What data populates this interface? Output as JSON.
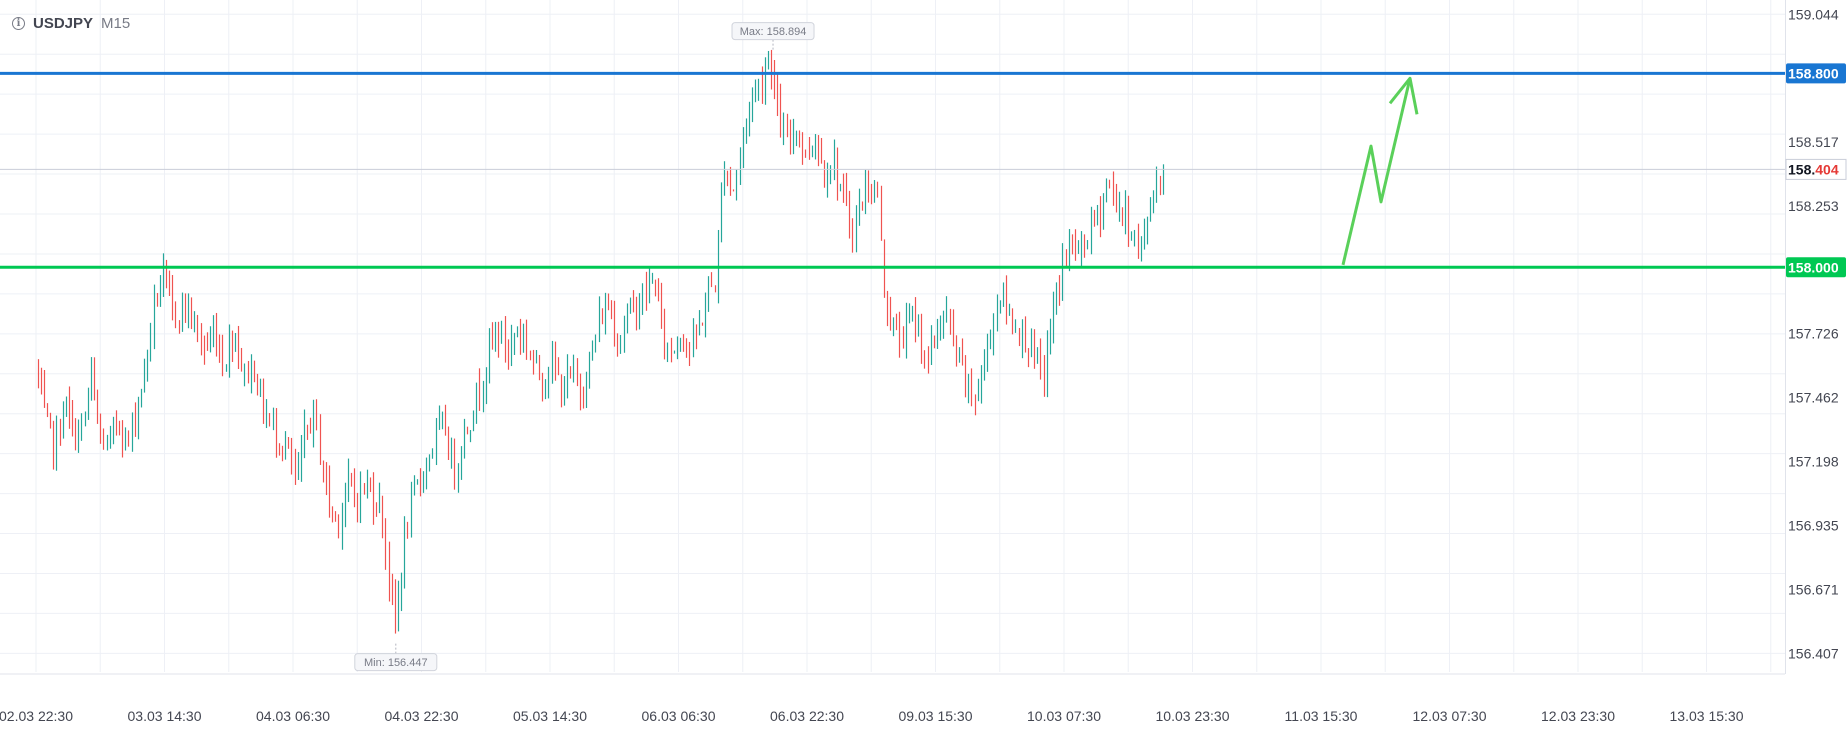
{
  "header": {
    "info_icon": "info-icon",
    "symbol": "USDJPY",
    "timeframe": "M15"
  },
  "chart_data": {
    "type": "candlestick",
    "symbol": "USDJPY",
    "timeframe": "M15",
    "ylim": [
      156.33,
      159.07
    ],
    "y_ticks": [
      "159.044",
      "158.517",
      "158.253",
      "157.726",
      "157.462",
      "157.198",
      "156.935",
      "156.671",
      "156.407"
    ],
    "x_ticks": [
      "02.03 22:30",
      "03.03 14:30",
      "04.03 06:30",
      "04.03 22:30",
      "05.03 14:30",
      "06.03 06:30",
      "06.03 22:30",
      "09.03 15:30",
      "10.03 07:30",
      "10.03 23:30",
      "11.03 15:30",
      "12.03 07:30",
      "12.03 23:30",
      "13.03 15:30"
    ],
    "grid": true,
    "current_price": {
      "label_prefix": "158.",
      "label_suffix": "404",
      "value": 158.404,
      "color": "#e53935"
    },
    "horizontal_levels": [
      {
        "value": 158.8,
        "label": "158.800",
        "color": "#1976d2"
      },
      {
        "value": 158.0,
        "label": "158.000",
        "color": "#00c853"
      }
    ],
    "max_marker": {
      "label": "Max: 158.894",
      "value": 158.894
    },
    "min_marker": {
      "label": "Min: 156.447",
      "value": 156.447
    },
    "price_path": [
      [
        0,
        157.6
      ],
      [
        0.8,
        157.36
      ],
      [
        1.6,
        157.25
      ],
      [
        2.3,
        157.45
      ],
      [
        3.0,
        157.3
      ],
      [
        3.8,
        157.35
      ],
      [
        4.4,
        157.55
      ],
      [
        5.0,
        157.3
      ],
      [
        5.8,
        157.25
      ],
      [
        6.5,
        157.4
      ],
      [
        7.2,
        157.25
      ],
      [
        8.0,
        157.45
      ],
      [
        8.5,
        157.55
      ],
      [
        9.0,
        157.75
      ],
      [
        9.5,
        157.9
      ],
      [
        10.0,
        157.95
      ],
      [
        10.8,
        157.8
      ],
      [
        11.6,
        157.85
      ],
      [
        12.5,
        157.75
      ],
      [
        13.3,
        157.65
      ],
      [
        14.0,
        157.75
      ],
      [
        14.7,
        157.6
      ],
      [
        15.5,
        157.75
      ],
      [
        16.3,
        157.55
      ],
      [
        17.0,
        157.6
      ],
      [
        17.6,
        157.45
      ],
      [
        18.3,
        157.35
      ],
      [
        19.0,
        157.3
      ],
      [
        19.6,
        157.25
      ],
      [
        20.3,
        157.1
      ],
      [
        21.0,
        157.3
      ],
      [
        21.7,
        157.4
      ],
      [
        22.3,
        157.2
      ],
      [
        23.0,
        157.0
      ],
      [
        23.6,
        156.95
      ],
      [
        24.3,
        157.1
      ],
      [
        25.0,
        157.05
      ],
      [
        25.8,
        157.1
      ],
      [
        26.5,
        157.05
      ],
      [
        27.0,
        157.0
      ],
      [
        27.5,
        156.75
      ],
      [
        28.0,
        156.5
      ],
      [
        28.6,
        156.8
      ],
      [
        29.2,
        157.0
      ],
      [
        29.8,
        157.1
      ],
      [
        30.5,
        157.2
      ],
      [
        31.2,
        157.3
      ],
      [
        31.9,
        157.35
      ],
      [
        32.6,
        157.15
      ],
      [
        33.3,
        157.3
      ],
      [
        34.0,
        157.4
      ],
      [
        34.6,
        157.5
      ],
      [
        35.3,
        157.65
      ],
      [
        36.0,
        157.75
      ],
      [
        36.8,
        157.65
      ],
      [
        37.5,
        157.75
      ],
      [
        38.2,
        157.7
      ],
      [
        38.8,
        157.6
      ],
      [
        39.5,
        157.55
      ],
      [
        40.2,
        157.6
      ],
      [
        41.0,
        157.5
      ],
      [
        41.8,
        157.55
      ],
      [
        42.5,
        157.5
      ],
      [
        43.2,
        157.6
      ],
      [
        44.0,
        157.8
      ],
      [
        44.7,
        157.85
      ],
      [
        45.4,
        157.7
      ],
      [
        46.1,
        157.8
      ],
      [
        46.9,
        157.85
      ],
      [
        47.6,
        157.9
      ],
      [
        48.3,
        157.95
      ],
      [
        48.9,
        157.7
      ],
      [
        49.6,
        157.65
      ],
      [
        50.3,
        157.75
      ],
      [
        51.0,
        157.65
      ],
      [
        51.7,
        157.75
      ],
      [
        52.4,
        157.9
      ],
      [
        53.0,
        157.95
      ],
      [
        53.6,
        158.45
      ],
      [
        54.3,
        158.3
      ],
      [
        55.0,
        158.5
      ],
      [
        55.7,
        158.7
      ],
      [
        56.4,
        158.76
      ],
      [
        57.2,
        158.89
      ],
      [
        57.9,
        158.6
      ],
      [
        58.6,
        158.5
      ],
      [
        59.3,
        158.6
      ],
      [
        60.0,
        158.45
      ],
      [
        60.7,
        158.55
      ],
      [
        61.4,
        158.4
      ],
      [
        62.1,
        158.45
      ],
      [
        62.8,
        158.3
      ],
      [
        63.5,
        158.15
      ],
      [
        64.2,
        158.25
      ],
      [
        64.9,
        158.35
      ],
      [
        65.6,
        158.3
      ],
      [
        66.0,
        157.95
      ],
      [
        66.7,
        157.75
      ],
      [
        67.4,
        157.7
      ],
      [
        68.1,
        157.8
      ],
      [
        68.8,
        157.75
      ],
      [
        69.5,
        157.6
      ],
      [
        70.2,
        157.75
      ],
      [
        70.9,
        157.8
      ],
      [
        71.6,
        157.65
      ],
      [
        72.3,
        157.55
      ],
      [
        73.0,
        157.45
      ],
      [
        73.7,
        157.55
      ],
      [
        74.4,
        157.75
      ],
      [
        75.1,
        157.9
      ],
      [
        75.8,
        157.8
      ],
      [
        76.5,
        157.75
      ],
      [
        77.2,
        157.7
      ],
      [
        77.9,
        157.6
      ],
      [
        78.5,
        157.55
      ],
      [
        79.2,
        157.8
      ],
      [
        79.9,
        158.0
      ],
      [
        80.6,
        158.1
      ],
      [
        81.3,
        158.05
      ],
      [
        82.0,
        158.15
      ],
      [
        82.7,
        158.2
      ],
      [
        83.4,
        158.35
      ],
      [
        84.1,
        158.28
      ],
      [
        84.8,
        158.2
      ],
      [
        85.5,
        158.15
      ],
      [
        86.0,
        158.05
      ],
      [
        86.6,
        158.2
      ],
      [
        87.2,
        158.35
      ],
      [
        87.8,
        158.404
      ]
    ]
  }
}
